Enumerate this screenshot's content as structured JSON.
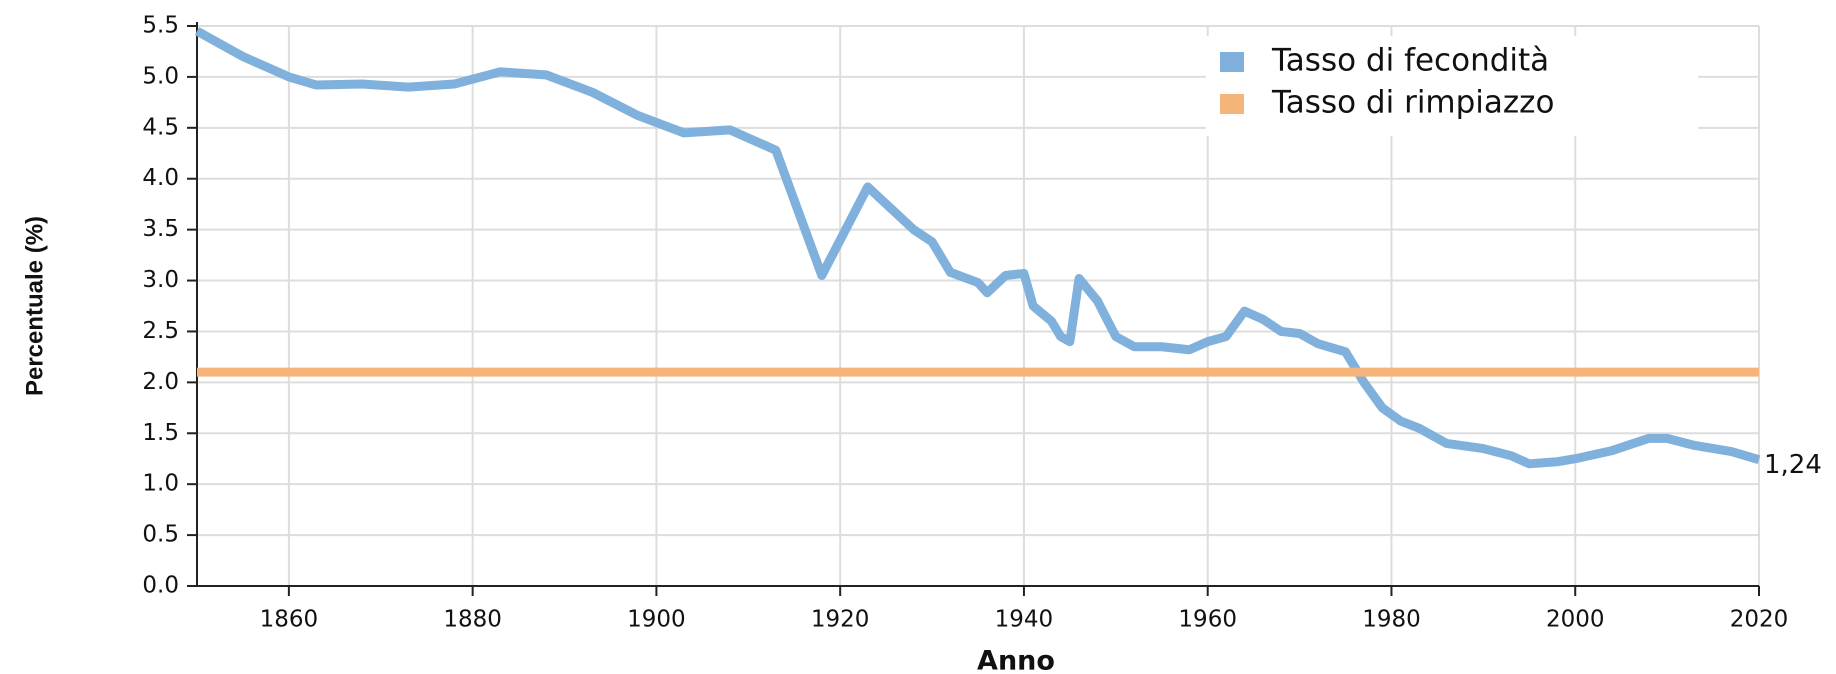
{
  "chart_data": {
    "type": "line",
    "xlabel": "Anno",
    "ylabel": "Percentuale (%)",
    "xlim": [
      1850,
      2020
    ],
    "xticks": [
      1860,
      1880,
      1900,
      1920,
      1940,
      1960,
      1980,
      2000,
      2020
    ],
    "ylim": [
      0,
      5.5
    ],
    "yticks": [
      {
        "value": 0,
        "label": "0.0"
      },
      0.5,
      {
        "value": 1,
        "label": "1.0"
      },
      1.5,
      {
        "value": 2,
        "label": "2.0"
      },
      2.5,
      {
        "value": 3,
        "label": "3.0"
      },
      3.5,
      {
        "value": 4,
        "label": "4.0"
      },
      4.5,
      {
        "value": 5,
        "label": "5.0"
      },
      5.5
    ],
    "grid": true,
    "legend": "top-right",
    "series": [
      {
        "name": "Tasso di fecondità",
        "color": "#7fb1dc",
        "x": [
          1850,
          1855,
          1860,
          1863,
          1868,
          1873,
          1878,
          1883,
          1888,
          1893,
          1898,
          1903,
          1908,
          1913,
          1918,
          1923,
          1928,
          1930,
          1932,
          1935,
          1936,
          1938,
          1940,
          1941,
          1943,
          1944,
          1945,
          1946,
          1948,
          1950,
          1952,
          1955,
          1958,
          1960,
          1962,
          1964,
          1966,
          1968,
          1970,
          1972,
          1975,
          1977,
          1979,
          1981,
          1983,
          1986,
          1990,
          1993,
          1995,
          1998,
          2000,
          2004,
          2008,
          2010,
          2013,
          2017,
          2020
        ],
        "values": [
          5.45,
          5.2,
          5.0,
          4.92,
          4.93,
          4.9,
          4.93,
          5.05,
          5.02,
          4.85,
          4.62,
          4.45,
          4.48,
          4.28,
          3.05,
          3.92,
          3.5,
          3.38,
          3.08,
          2.98,
          2.88,
          3.05,
          3.07,
          2.75,
          2.6,
          2.45,
          2.4,
          3.02,
          2.8,
          2.45,
          2.35,
          2.35,
          2.32,
          2.4,
          2.45,
          2.7,
          2.62,
          2.5,
          2.48,
          2.38,
          2.3,
          2.0,
          1.75,
          1.62,
          1.55,
          1.4,
          1.35,
          1.28,
          1.2,
          1.22,
          1.25,
          1.33,
          1.45,
          1.45,
          1.38,
          1.32,
          1.24
        ]
      },
      {
        "name": "Tasso di rimpiazzo",
        "color": "#f5b57a",
        "x": [
          1850,
          2020
        ],
        "values": [
          2.1,
          2.1
        ]
      }
    ],
    "annotation": "1,24"
  }
}
